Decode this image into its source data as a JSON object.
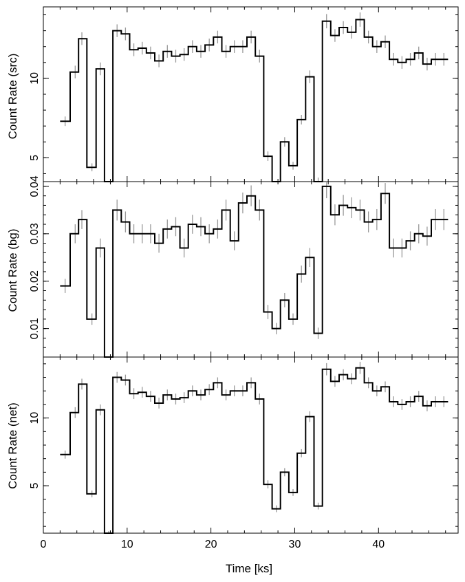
{
  "chart_data": [
    {
      "type": "line",
      "subtype": "step-with-errorbars",
      "panel": "src",
      "ylabel": "Count Rate (src)",
      "ylim": [
        3.5,
        14.5
      ],
      "ytick_values": [
        5,
        10
      ],
      "ytick_labels": [
        "5",
        "10"
      ],
      "x": [
        2.6,
        3.8,
        4.6,
        5.8,
        6.8,
        7.8,
        8.8,
        9.8,
        10.8,
        11.8,
        12.8,
        13.8,
        14.8,
        15.8,
        16.8,
        17.8,
        18.8,
        19.8,
        20.8,
        21.8,
        22.8,
        23.8,
        24.8,
        25.8,
        26.8,
        27.8,
        28.8,
        29.8,
        30.8,
        31.8,
        32.8,
        33.8,
        34.8,
        35.8,
        36.8,
        37.8,
        38.8,
        39.8,
        40.8,
        41.8,
        42.8,
        43.8,
        44.8,
        45.8,
        46.8,
        47.8
      ],
      "values": [
        7.3,
        10.4,
        12.5,
        4.4,
        10.6,
        1.5,
        13.0,
        12.8,
        11.8,
        11.9,
        11.6,
        11.1,
        11.7,
        11.4,
        11.5,
        12.0,
        11.7,
        12.1,
        12.6,
        11.7,
        12.0,
        12.0,
        12.6,
        11.4,
        5.1,
        3.3,
        6.0,
        4.5,
        7.4,
        10.1,
        3.5,
        13.6,
        12.7,
        13.2,
        12.9,
        13.7,
        12.6,
        12.0,
        12.3,
        11.2,
        11.0,
        11.2,
        11.6,
        10.9,
        11.2,
        11.2
      ],
      "errors": [
        0.3,
        0.4,
        0.4,
        0.25,
        0.4,
        0.15,
        0.4,
        0.4,
        0.4,
        0.4,
        0.4,
        0.4,
        0.4,
        0.4,
        0.4,
        0.4,
        0.4,
        0.4,
        0.4,
        0.4,
        0.4,
        0.4,
        0.4,
        0.4,
        0.3,
        0.25,
        0.3,
        0.25,
        0.3,
        0.4,
        0.25,
        0.45,
        0.4,
        0.4,
        0.4,
        0.45,
        0.4,
        0.4,
        0.4,
        0.4,
        0.4,
        0.4,
        0.4,
        0.4,
        0.4,
        0.4
      ]
    },
    {
      "type": "line",
      "subtype": "step-with-errorbars",
      "panel": "bg",
      "ylabel": "Count Rate (bg)",
      "ylim": [
        0.004,
        0.041
      ],
      "ytick_values": [
        0.01,
        0.02,
        0.03,
        0.04
      ],
      "ytick_labels": [
        "0.01",
        "0.02",
        "0.03",
        "0.04"
      ],
      "x": [
        2.6,
        3.8,
        4.6,
        5.8,
        6.8,
        7.8,
        8.8,
        9.8,
        10.8,
        11.8,
        12.8,
        13.8,
        14.8,
        15.8,
        16.8,
        17.8,
        18.8,
        19.8,
        20.8,
        21.8,
        22.8,
        23.8,
        24.8,
        25.8,
        26.8,
        27.8,
        28.8,
        29.8,
        30.8,
        31.8,
        32.8,
        33.8,
        34.8,
        35.8,
        36.8,
        37.8,
        38.8,
        39.8,
        40.8,
        41.8,
        42.8,
        43.8,
        44.8,
        45.8,
        46.8,
        47.8
      ],
      "values": [
        0.019,
        0.03,
        0.033,
        0.012,
        0.027,
        0.001,
        0.035,
        0.0325,
        0.03,
        0.03,
        0.03,
        0.028,
        0.031,
        0.0315,
        0.027,
        0.032,
        0.0315,
        0.03,
        0.031,
        0.035,
        0.0285,
        0.0365,
        0.038,
        0.035,
        0.0135,
        0.01,
        0.016,
        0.012,
        0.0215,
        0.025,
        0.009,
        0.04,
        0.034,
        0.036,
        0.0355,
        0.035,
        0.0325,
        0.033,
        0.0385,
        0.027,
        0.027,
        0.0285,
        0.03,
        0.0295,
        0.033,
        0.033
      ],
      "errors": [
        0.0015,
        0.002,
        0.002,
        0.0012,
        0.002,
        0.0005,
        0.0022,
        0.0022,
        0.002,
        0.002,
        0.002,
        0.002,
        0.002,
        0.002,
        0.002,
        0.002,
        0.002,
        0.002,
        0.002,
        0.0022,
        0.002,
        0.0022,
        0.0022,
        0.0022,
        0.0015,
        0.0012,
        0.0015,
        0.0012,
        0.0018,
        0.002,
        0.0012,
        0.0025,
        0.0022,
        0.0022,
        0.0022,
        0.0022,
        0.0022,
        0.0022,
        0.0022,
        0.002,
        0.002,
        0.002,
        0.002,
        0.002,
        0.0022,
        0.0022
      ]
    },
    {
      "type": "line",
      "subtype": "step-with-errorbars",
      "panel": "net",
      "ylabel": "Count Rate (net)",
      "xlabel": "Time [ks]",
      "xlim": [
        0,
        49.5
      ],
      "xtick_values": [
        0,
        10,
        20,
        30,
        40
      ],
      "xtick_labels": [
        "0",
        "10",
        "20",
        "30",
        "40"
      ],
      "ylim": [
        1.5,
        14.5
      ],
      "ytick_values": [
        5,
        10
      ],
      "ytick_labels": [
        "5",
        "10"
      ],
      "x": [
        2.6,
        3.8,
        4.6,
        5.8,
        6.8,
        7.8,
        8.8,
        9.8,
        10.8,
        11.8,
        12.8,
        13.8,
        14.8,
        15.8,
        16.8,
        17.8,
        18.8,
        19.8,
        20.8,
        21.8,
        22.8,
        23.8,
        24.8,
        25.8,
        26.8,
        27.8,
        28.8,
        29.8,
        30.8,
        31.8,
        32.8,
        33.8,
        34.8,
        35.8,
        36.8,
        37.8,
        38.8,
        39.8,
        40.8,
        41.8,
        42.8,
        43.8,
        44.8,
        45.8,
        46.8,
        47.8
      ],
      "values": [
        7.3,
        10.4,
        12.5,
        4.4,
        10.6,
        1.5,
        13.0,
        12.8,
        11.8,
        11.9,
        11.6,
        11.1,
        11.7,
        11.4,
        11.5,
        12.0,
        11.7,
        12.1,
        12.6,
        11.7,
        12.0,
        12.0,
        12.6,
        11.4,
        5.1,
        3.3,
        6.0,
        4.5,
        7.4,
        10.1,
        3.5,
        13.6,
        12.7,
        13.2,
        12.9,
        13.7,
        12.6,
        12.0,
        12.3,
        11.2,
        11.0,
        11.2,
        11.6,
        10.9,
        11.2,
        11.2
      ],
      "errors": [
        0.3,
        0.4,
        0.4,
        0.25,
        0.4,
        0.15,
        0.4,
        0.4,
        0.4,
        0.4,
        0.4,
        0.4,
        0.4,
        0.4,
        0.4,
        0.4,
        0.4,
        0.4,
        0.4,
        0.4,
        0.4,
        0.4,
        0.4,
        0.4,
        0.3,
        0.25,
        0.3,
        0.25,
        0.3,
        0.4,
        0.25,
        0.45,
        0.4,
        0.4,
        0.4,
        0.45,
        0.4,
        0.4,
        0.4,
        0.4,
        0.4,
        0.4,
        0.4,
        0.4,
        0.4,
        0.4
      ]
    }
  ],
  "style": {
    "line_color": "#000000",
    "errorbar_color": "#999999"
  }
}
